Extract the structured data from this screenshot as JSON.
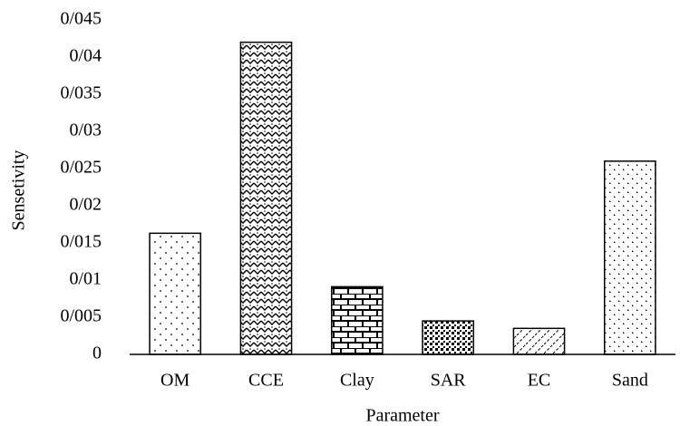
{
  "chart_data": {
    "type": "bar",
    "x_label": "Parameter",
    "y_label": "Sensetivity",
    "categories": [
      "OM",
      "CCE",
      "Clay",
      "SAR",
      "EC",
      "Sand"
    ],
    "values": [
      0.0163,
      0.042,
      0.0091,
      0.0045,
      0.0035,
      0.026
    ],
    "color": "#000000",
    "ylim": [
      0,
      0.045
    ],
    "yticks": [
      0,
      {
        "value": 0.005,
        "label": "0/005"
      },
      {
        "value": 0.01,
        "label": "0/01"
      },
      {
        "value": 0.015,
        "label": "0/015"
      },
      {
        "value": 0.02,
        "label": "0/02"
      },
      {
        "value": 0.025,
        "label": "0/025"
      },
      {
        "value": 0.03,
        "label": "0/03"
      },
      {
        "value": 0.035,
        "label": "0/035"
      },
      {
        "value": 0.04,
        "label": "0/04"
      },
      {
        "value": 0.045,
        "label": "0/045"
      }
    ],
    "grid": false
  }
}
